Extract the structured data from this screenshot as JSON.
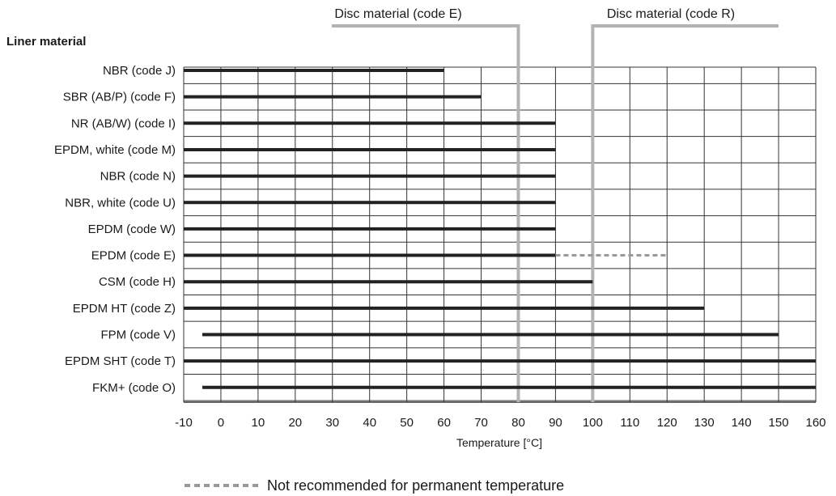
{
  "chart_data": {
    "type": "bar",
    "orientation": "horizontal-range",
    "section_title": "Liner material",
    "xlabel": "Temperature [°C]",
    "xlim": [
      -10,
      160
    ],
    "xticks": [
      -10,
      0,
      10,
      20,
      30,
      40,
      50,
      60,
      70,
      80,
      90,
      100,
      110,
      120,
      130,
      140,
      150,
      160
    ],
    "grid": true,
    "categories": [
      "NBR (code J)",
      "SBR (AB/P) (code F)",
      "NR (AB/W) (code I)",
      "EPDM, white (code M)",
      "NBR (code N)",
      "NBR, white (code U)",
      "EPDM (code W)",
      "EPDM (code E)",
      "CSM (code H)",
      "EPDM HT (code Z)",
      "FPM (code V)",
      "EPDM SHT (code T)",
      "FKM+ (code O)"
    ],
    "ranges": [
      {
        "min": -10,
        "max": 60
      },
      {
        "min": -10,
        "max": 70
      },
      {
        "min": -10,
        "max": 90
      },
      {
        "min": -10,
        "max": 90
      },
      {
        "min": -10,
        "max": 90
      },
      {
        "min": -10,
        "max": 90
      },
      {
        "min": -10,
        "max": 90
      },
      {
        "min": -10,
        "max": 90,
        "not_recommended_max": 120
      },
      {
        "min": -10,
        "max": 100
      },
      {
        "min": -10,
        "max": 130
      },
      {
        "min": -5,
        "max": 150
      },
      {
        "min": -10,
        "max": 160
      },
      {
        "min": -5,
        "max": 160
      }
    ],
    "markers": [
      {
        "label": "Disc material (code E)",
        "x": 80
      },
      {
        "label": "Disc material (code R)",
        "x": 100
      }
    ],
    "legend": {
      "position": "bottom",
      "items": [
        {
          "style": "dashed",
          "label": "Not recommended for permanent temperature"
        }
      ]
    },
    "colors": {
      "bar": "#222222",
      "grid": "#333333",
      "marker": "#b3b3b3",
      "dashed": "#999999"
    }
  }
}
